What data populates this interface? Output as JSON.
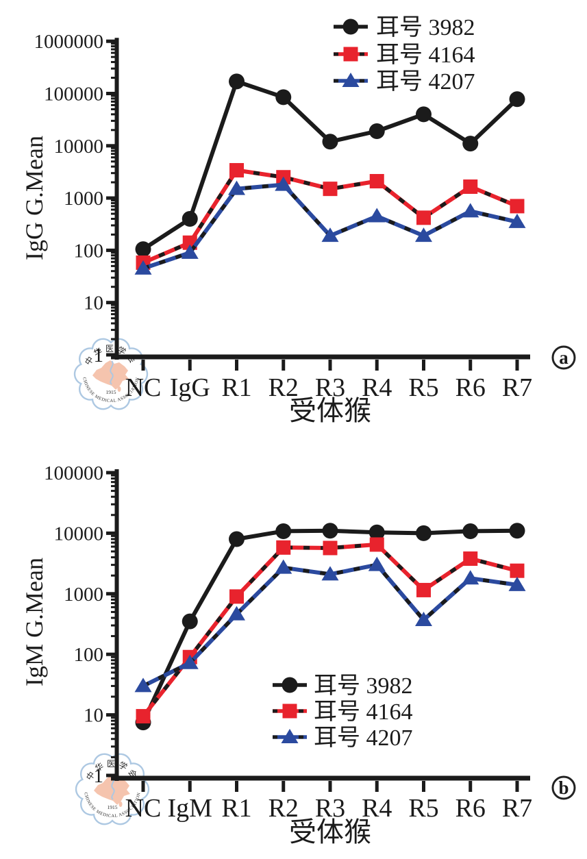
{
  "figure": {
    "background": "#ffffff",
    "watermark": {
      "top_text": "中华医学会",
      "bottom_text": "CHINESE MEDICAL ASSOCIATION",
      "year": "1915",
      "ring_color": "#a9c6e1",
      "map_color": "#f5c1aa",
      "year_color": "#e8a68e"
    }
  },
  "chart_data": [
    {
      "id": "a",
      "type": "line",
      "panel_label": "a",
      "yscale": "log",
      "ylim": [
        1,
        1000000
      ],
      "ylabel": "IgG G.Mean",
      "xlabel": "受体猴",
      "ytick_labels": [
        "1",
        "10",
        "100",
        "1000",
        "10000",
        "100000",
        "1000000"
      ],
      "categories": [
        "NC",
        "IgG",
        "R1",
        "R2",
        "R3",
        "R4",
        "R5",
        "R6",
        "R7"
      ],
      "grid": false,
      "legend_position": "top-right-inside",
      "series": [
        {
          "name": "耳号 3982",
          "color": "#1b1b1b",
          "marker": "circle",
          "dashed_overlay": false,
          "values": [
            105,
            400,
            170000,
            85000,
            12000,
            19000,
            40000,
            11000,
            78000
          ]
        },
        {
          "name": "耳号 4164",
          "color": "#e8232d",
          "marker": "square",
          "dashed_overlay": true,
          "values": [
            58,
            140,
            3400,
            2500,
            1500,
            2100,
            420,
            1650,
            700
          ]
        },
        {
          "name": "耳号 4207",
          "color": "#2b4a9f",
          "marker": "triangle",
          "dashed_overlay": true,
          "values": [
            45,
            90,
            1500,
            1800,
            190,
            450,
            190,
            560,
            350
          ]
        }
      ]
    },
    {
      "id": "b",
      "type": "line",
      "panel_label": "b",
      "yscale": "log",
      "ylim": [
        1,
        100000
      ],
      "ylabel": "IgM G.Mean",
      "xlabel": "受体猴",
      "ytick_labels": [
        "1",
        "10",
        "100",
        "1000",
        "10000",
        "100000"
      ],
      "categories": [
        "NC",
        "IgM",
        "R1",
        "R2",
        "R3",
        "R4",
        "R5",
        "R6",
        "R7"
      ],
      "grid": false,
      "legend_position": "center-bottom-inside",
      "series": [
        {
          "name": "耳号 3982",
          "color": "#1b1b1b",
          "marker": "circle",
          "dashed_overlay": false,
          "values": [
            7.5,
            350,
            8000,
            10800,
            11000,
            10300,
            10000,
            10800,
            11000
          ]
        },
        {
          "name": "耳号 4164",
          "color": "#e8232d",
          "marker": "square",
          "dashed_overlay": true,
          "values": [
            9.5,
            90,
            900,
            5800,
            5700,
            6500,
            1150,
            3800,
            2400
          ]
        },
        {
          "name": "耳号 4207",
          "color": "#2b4a9f",
          "marker": "triangle",
          "dashed_overlay": true,
          "values": [
            30,
            72,
            460,
            2700,
            2100,
            3000,
            370,
            1800,
            1400
          ]
        }
      ]
    }
  ]
}
